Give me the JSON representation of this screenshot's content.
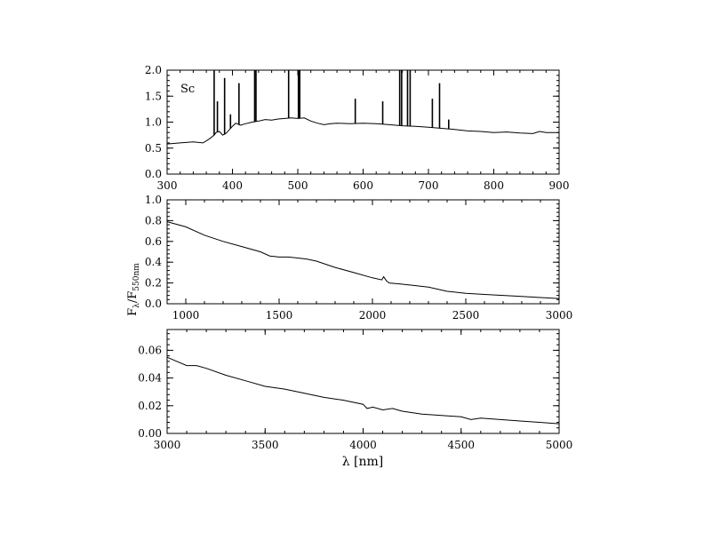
{
  "figure": {
    "ylabel_main": "F",
    "ylabel_sub1": "λ",
    "ylabel_slash": "/F",
    "ylabel_sub2": "550nm",
    "xlabel": "λ [nm]"
  },
  "chart_data": [
    {
      "type": "line",
      "annotation": "Sc",
      "xlim": [
        300,
        900
      ],
      "ylim": [
        0,
        2.0
      ],
      "xticks": [
        "300",
        "400",
        "500",
        "600",
        "700",
        "800",
        "900"
      ],
      "xtick_values": [
        300,
        400,
        500,
        600,
        700,
        800,
        900
      ],
      "yticks": [
        "0.0",
        "0.5",
        "1.0",
        "1.5",
        "2.0"
      ],
      "ytick_values": [
        0,
        0.5,
        1.0,
        1.5,
        2.0
      ],
      "series": [
        {
          "x": [
            300,
            320,
            340,
            355,
            365,
            372,
            375,
            380,
            385,
            390,
            395,
            400,
            405,
            412,
            420,
            430,
            440,
            450,
            460,
            470,
            480,
            490,
            500,
            510,
            520,
            530,
            540,
            550,
            560,
            580,
            600,
            620,
            640,
            660,
            680,
            700,
            720,
            740,
            760,
            780,
            800,
            820,
            840,
            860,
            870,
            880,
            900
          ],
          "y": [
            0.58,
            0.6,
            0.62,
            0.6,
            0.68,
            0.75,
            0.8,
            0.82,
            0.75,
            0.78,
            0.85,
            0.92,
            0.98,
            0.94,
            0.97,
            1.0,
            1.02,
            1.05,
            1.04,
            1.06,
            1.07,
            1.08,
            1.07,
            1.08,
            1.02,
            0.98,
            0.95,
            0.97,
            0.98,
            0.97,
            0.98,
            0.97,
            0.95,
            0.93,
            0.92,
            0.9,
            0.88,
            0.86,
            0.83,
            0.82,
            0.8,
            0.81,
            0.79,
            0.78,
            0.82,
            0.8,
            0.8
          ]
        }
      ],
      "emission_lines": [
        {
          "x": 372,
          "peak": 2.0
        },
        {
          "x": 377,
          "peak": 1.4
        },
        {
          "x": 388,
          "peak": 1.85
        },
        {
          "x": 397,
          "peak": 1.15
        },
        {
          "x": 410,
          "peak": 1.75
        },
        {
          "x": 434,
          "peak": 2.0
        },
        {
          "x": 436,
          "peak": 2.0
        },
        {
          "x": 486,
          "peak": 2.0
        },
        {
          "x": 501,
          "peak": 2.0
        },
        {
          "x": 503,
          "peak": 2.0
        },
        {
          "x": 588,
          "peak": 1.45
        },
        {
          "x": 630,
          "peak": 1.4
        },
        {
          "x": 656,
          "peak": 2.0
        },
        {
          "x": 659,
          "peak": 2.0
        },
        {
          "x": 668,
          "peak": 2.0
        },
        {
          "x": 672,
          "peak": 2.0
        },
        {
          "x": 706,
          "peak": 1.45
        },
        {
          "x": 717,
          "peak": 1.75
        },
        {
          "x": 731,
          "peak": 1.05
        }
      ]
    },
    {
      "type": "line",
      "xlim": [
        900,
        3000
      ],
      "ylim": [
        0,
        1.0
      ],
      "xticks": [
        "1000",
        "1500",
        "2000",
        "2500",
        "3000"
      ],
      "xtick_values": [
        1000,
        1500,
        2000,
        2500,
        3000
      ],
      "yticks": [
        "0.0",
        "0.2",
        "0.4",
        "0.6",
        "0.8",
        "1.0"
      ],
      "ytick_values": [
        0,
        0.2,
        0.4,
        0.6,
        0.8,
        1.0
      ],
      "series": [
        {
          "x": [
            900,
            1000,
            1100,
            1200,
            1300,
            1400,
            1450,
            1500,
            1550,
            1600,
            1650,
            1700,
            1800,
            1900,
            2000,
            2050,
            2060,
            2075,
            2090,
            2150,
            2200,
            2300,
            2400,
            2500,
            2600,
            2700,
            2800,
            2900,
            3000
          ],
          "y": [
            0.79,
            0.74,
            0.66,
            0.6,
            0.55,
            0.5,
            0.46,
            0.45,
            0.45,
            0.44,
            0.43,
            0.41,
            0.35,
            0.3,
            0.25,
            0.23,
            0.26,
            0.22,
            0.2,
            0.19,
            0.18,
            0.16,
            0.12,
            0.1,
            0.09,
            0.08,
            0.07,
            0.06,
            0.05
          ]
        }
      ]
    },
    {
      "type": "line",
      "xlim": [
        3000,
        5000
      ],
      "ylim": [
        0,
        0.075
      ],
      "xticks": [
        "3000",
        "3500",
        "4000",
        "4500",
        "5000"
      ],
      "xtick_values": [
        3000,
        3500,
        4000,
        4500,
        5000
      ],
      "yticks": [
        "0.00",
        "0.02",
        "0.04",
        "0.06"
      ],
      "ytick_values": [
        0,
        0.02,
        0.04,
        0.06
      ],
      "series": [
        {
          "x": [
            3000,
            3050,
            3100,
            3150,
            3200,
            3300,
            3400,
            3500,
            3600,
            3700,
            3800,
            3900,
            4000,
            4020,
            4050,
            4100,
            4150,
            4200,
            4300,
            4400,
            4500,
            4550,
            4600,
            4700,
            4800,
            4900,
            5000
          ],
          "y": [
            0.055,
            0.052,
            0.049,
            0.049,
            0.047,
            0.042,
            0.038,
            0.034,
            0.032,
            0.029,
            0.026,
            0.024,
            0.021,
            0.018,
            0.019,
            0.017,
            0.018,
            0.016,
            0.014,
            0.013,
            0.012,
            0.01,
            0.011,
            0.01,
            0.009,
            0.008,
            0.007
          ]
        }
      ]
    }
  ]
}
